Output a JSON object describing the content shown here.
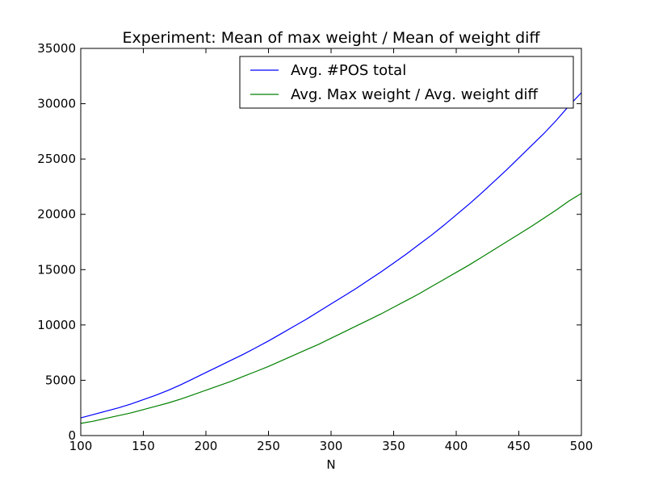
{
  "chart_data": {
    "type": "line",
    "title": "Experiment: Mean of max weight / Mean of weight diff",
    "xlabel": "N",
    "ylabel": "",
    "xlim": [
      100,
      500
    ],
    "ylim": [
      0,
      35000
    ],
    "xticks": [
      100,
      150,
      200,
      250,
      300,
      350,
      400,
      450,
      500
    ],
    "yticks": [
      0,
      5000,
      10000,
      15000,
      20000,
      25000,
      30000,
      35000
    ],
    "grid": false,
    "legend_position": "top-right",
    "series": [
      {
        "name": "Avg. #POS total",
        "color": "#0000ff",
        "x": [
          100,
          110,
          120,
          130,
          140,
          150,
          160,
          170,
          180,
          190,
          200,
          210,
          220,
          230,
          240,
          250,
          260,
          270,
          280,
          290,
          300,
          310,
          320,
          330,
          340,
          350,
          360,
          370,
          380,
          390,
          400,
          410,
          420,
          430,
          440,
          450,
          460,
          470,
          480,
          490,
          500
        ],
        "y": [
          1600,
          1900,
          2200,
          2500,
          2850,
          3250,
          3650,
          4100,
          4600,
          5150,
          5700,
          6250,
          6800,
          7350,
          7950,
          8550,
          9200,
          9850,
          10500,
          11200,
          11900,
          12600,
          13300,
          14050,
          14800,
          15600,
          16400,
          17250,
          18100,
          19000,
          19950,
          20900,
          21900,
          22950,
          24000,
          25100,
          26200,
          27300,
          28500,
          29800,
          31000
        ]
      },
      {
        "name": "Avg. Max weight / Avg. weight diff",
        "color": "#008000",
        "x": [
          100,
          110,
          120,
          130,
          140,
          150,
          160,
          170,
          180,
          190,
          200,
          210,
          220,
          230,
          240,
          250,
          260,
          270,
          280,
          290,
          300,
          310,
          320,
          330,
          340,
          350,
          360,
          370,
          380,
          390,
          400,
          410,
          420,
          430,
          440,
          450,
          460,
          470,
          480,
          490,
          500
        ],
        "y": [
          1100,
          1300,
          1550,
          1800,
          2050,
          2350,
          2650,
          2950,
          3300,
          3700,
          4100,
          4500,
          4900,
          5350,
          5800,
          6250,
          6750,
          7250,
          7750,
          8250,
          8800,
          9350,
          9900,
          10450,
          11000,
          11600,
          12200,
          12800,
          13450,
          14100,
          14750,
          15400,
          16100,
          16800,
          17500,
          18200,
          18900,
          19650,
          20400,
          21200,
          21900
        ]
      }
    ]
  }
}
